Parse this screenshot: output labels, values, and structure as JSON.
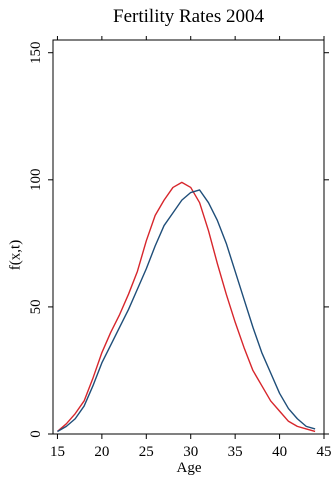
{
  "chart_data": {
    "type": "line",
    "title": "Fertility Rates 2004",
    "xlabel": "Age",
    "ylabel": "f(x,t)",
    "xlim": [
      14.5,
      45
    ],
    "ylim": [
      0,
      155
    ],
    "x_ticks": [
      15,
      20,
      25,
      30,
      35,
      40,
      45
    ],
    "y_ticks": [
      0,
      50,
      100,
      150
    ],
    "grid": false,
    "series": [
      {
        "color": "#d7262c",
        "x": [
          15,
          16,
          17,
          18,
          19,
          20,
          21,
          22,
          23,
          24,
          25,
          26,
          27,
          28,
          29,
          30,
          31,
          32,
          33,
          34,
          35,
          36,
          37,
          38,
          39,
          40,
          41,
          42,
          43,
          44
        ],
        "values": [
          1,
          4,
          8,
          13,
          22,
          32,
          40,
          47,
          55,
          64,
          76,
          86,
          92,
          97,
          99,
          97,
          91,
          80,
          67,
          55,
          44,
          34,
          25,
          19,
          13,
          9,
          5,
          3,
          2,
          1
        ]
      },
      {
        "color": "#1f4e79",
        "x": [
          15,
          16,
          17,
          18,
          19,
          20,
          21,
          22,
          23,
          24,
          25,
          26,
          27,
          28,
          29,
          30,
          31,
          32,
          33,
          34,
          35,
          36,
          37,
          38,
          39,
          40,
          41,
          42,
          43,
          44
        ],
        "values": [
          1,
          3,
          6,
          11,
          19,
          28,
          35,
          42,
          49,
          57,
          65,
          74,
          82,
          87,
          92,
          95,
          96,
          91,
          84,
          75,
          64,
          53,
          42,
          32,
          24,
          16,
          10,
          6,
          3,
          2
        ]
      }
    ]
  }
}
